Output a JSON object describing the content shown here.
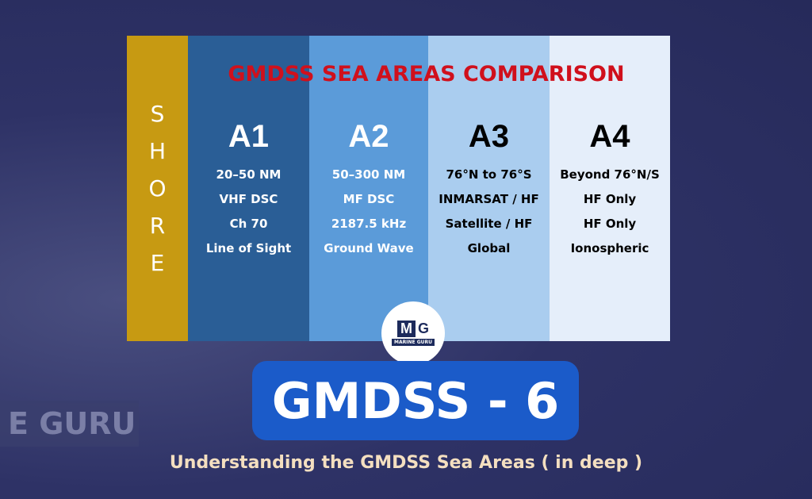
{
  "background_text": "E GURU",
  "title": "GMDSS SEA AREAS COMPARISON",
  "shore_letters": [
    "S",
    "H",
    "O",
    "R",
    "E"
  ],
  "areas": [
    {
      "name": "A1",
      "color": "#2a5e96",
      "text": "#ffffff",
      "lines": [
        "20–50 NM",
        "VHF DSC",
        "Ch 70",
        "Line of Sight"
      ]
    },
    {
      "name": "A2",
      "color": "#5b9bd9",
      "text": "#ffffff",
      "lines": [
        "50–300 NM",
        "MF DSC",
        "2187.5 kHz",
        "Ground Wave"
      ]
    },
    {
      "name": "A3",
      "color": "#aacdef",
      "text": "#000000",
      "lines": [
        "76°N to 76°S",
        "INMARSAT / HF",
        "Satellite / HF",
        "Global"
      ]
    },
    {
      "name": "A4",
      "color": "#e5eefa",
      "text": "#000000",
      "lines": [
        "Beyond 76°N/S",
        "HF Only",
        "HF Only",
        "Ionospheric"
      ]
    }
  ],
  "logo": {
    "m": "M",
    "g": "G",
    "name": "MARINE GURU"
  },
  "headline": "GMDSS - 6",
  "subtitle": "Understanding the GMDSS Sea Areas ( in deep )"
}
